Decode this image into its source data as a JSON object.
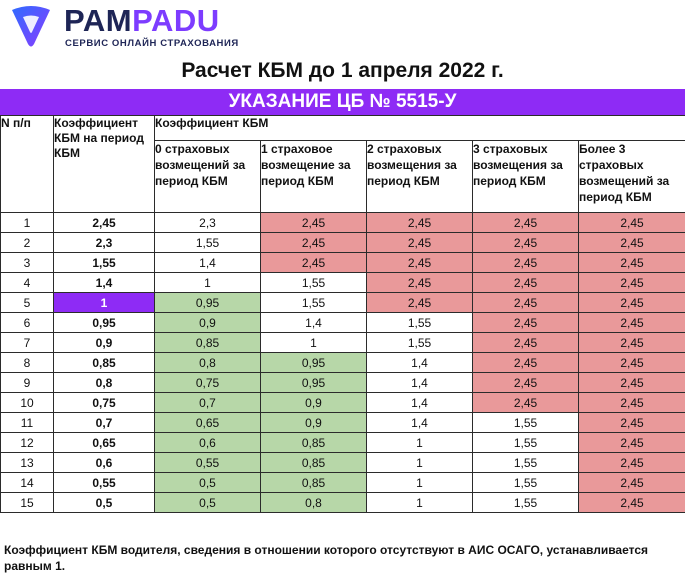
{
  "brand": {
    "name_part1": "PAM",
    "name_part2": "PADU",
    "tagline": "СЕРВИС ОНЛАЙН СТРАХОВАНИЯ",
    "colors": {
      "dark": "#1e2556",
      "accent": "#7d3cff"
    }
  },
  "title": "Расчет КБМ до 1 апреля 2022 г.",
  "banner": "УКАЗАНИЕ ЦБ № 5515-У",
  "table": {
    "header_num": "N п/п",
    "header_coef": "Коэффициент КБМ на период КБМ",
    "header_group": "Коэффициент КБМ",
    "subheaders": [
      "0 страховых возмещений за период КБМ",
      "1 страховое возмещение за период КБМ",
      "2 страховых возмещения за период КБМ",
      "3 страховых возмещения за период КБМ",
      "Более 3 страховых возмещений за период КБМ"
    ],
    "rows": [
      {
        "n": "1",
        "kbm": "2,45",
        "c": [
          "2,3",
          "2,45",
          "2,45",
          "2,45",
          "2,45"
        ],
        "s": [
          "w",
          "r",
          "r",
          "r",
          "r"
        ]
      },
      {
        "n": "2",
        "kbm": "2,3",
        "c": [
          "1,55",
          "2,45",
          "2,45",
          "2,45",
          "2,45"
        ],
        "s": [
          "w",
          "r",
          "r",
          "r",
          "r"
        ]
      },
      {
        "n": "3",
        "kbm": "1,55",
        "c": [
          "1,4",
          "2,45",
          "2,45",
          "2,45",
          "2,45"
        ],
        "s": [
          "w",
          "r",
          "r",
          "r",
          "r"
        ]
      },
      {
        "n": "4",
        "kbm": "1,4",
        "c": [
          "1",
          "1,55",
          "2,45",
          "2,45",
          "2,45"
        ],
        "s": [
          "w",
          "w",
          "r",
          "r",
          "r"
        ]
      },
      {
        "n": "5",
        "kbm": "1",
        "c": [
          "0,95",
          "1,55",
          "2,45",
          "2,45",
          "2,45"
        ],
        "s": [
          "g",
          "w",
          "r",
          "r",
          "r"
        ],
        "highlight": true
      },
      {
        "n": "6",
        "kbm": "0,95",
        "c": [
          "0,9",
          "1,4",
          "1,55",
          "2,45",
          "2,45"
        ],
        "s": [
          "g",
          "w",
          "w",
          "r",
          "r"
        ]
      },
      {
        "n": "7",
        "kbm": "0,9",
        "c": [
          "0,85",
          "1",
          "1,55",
          "2,45",
          "2,45"
        ],
        "s": [
          "g",
          "w",
          "w",
          "r",
          "r"
        ]
      },
      {
        "n": "8",
        "kbm": "0,85",
        "c": [
          "0,8",
          "0,95",
          "1,4",
          "2,45",
          "2,45"
        ],
        "s": [
          "g",
          "g",
          "w",
          "r",
          "r"
        ]
      },
      {
        "n": "9",
        "kbm": "0,8",
        "c": [
          "0,75",
          "0,95",
          "1,4",
          "2,45",
          "2,45"
        ],
        "s": [
          "g",
          "g",
          "w",
          "r",
          "r"
        ]
      },
      {
        "n": "10",
        "kbm": "0,75",
        "c": [
          "0,7",
          "0,9",
          "1,4",
          "2,45",
          "2,45"
        ],
        "s": [
          "g",
          "g",
          "w",
          "r",
          "r"
        ]
      },
      {
        "n": "11",
        "kbm": "0,7",
        "c": [
          "0,65",
          "0,9",
          "1,4",
          "1,55",
          "2,45"
        ],
        "s": [
          "g",
          "g",
          "w",
          "w",
          "r"
        ]
      },
      {
        "n": "12",
        "kbm": "0,65",
        "c": [
          "0,6",
          "0,85",
          "1",
          "1,55",
          "2,45"
        ],
        "s": [
          "g",
          "g",
          "w",
          "w",
          "r"
        ]
      },
      {
        "n": "13",
        "kbm": "0,6",
        "c": [
          "0,55",
          "0,85",
          "1",
          "1,55",
          "2,45"
        ],
        "s": [
          "g",
          "g",
          "w",
          "w",
          "r"
        ]
      },
      {
        "n": "14",
        "kbm": "0,55",
        "c": [
          "0,5",
          "0,85",
          "1",
          "1,55",
          "2,45"
        ],
        "s": [
          "g",
          "g",
          "w",
          "w",
          "r"
        ]
      },
      {
        "n": "15",
        "kbm": "0,5",
        "c": [
          "0,5",
          "0,8",
          "1",
          "1,55",
          "2,45"
        ],
        "s": [
          "g",
          "g",
          "w",
          "w",
          "r"
        ]
      }
    ]
  },
  "footer": "Коэффициент КБМ водителя, сведения в отношении которого отсутствуют в АИС ОСАГО, устанавливается равным 1."
}
